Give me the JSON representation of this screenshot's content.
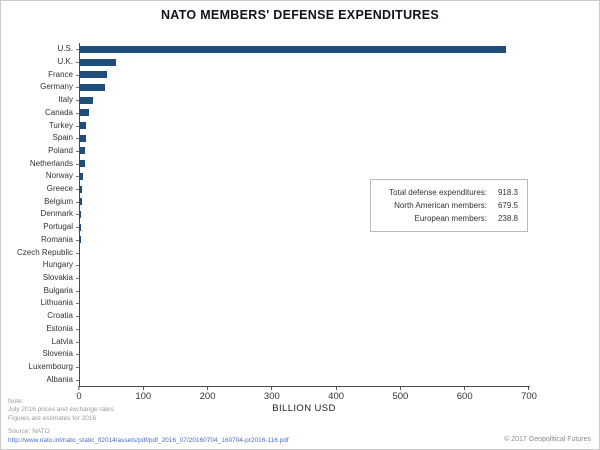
{
  "chart_data": {
    "type": "bar",
    "orientation": "horizontal",
    "title": "NATO MEMBERS' DEFENSE EXPENDITURES",
    "xlabel": "BILLION USD",
    "xlim": [
      0,
      700
    ],
    "xticks": [
      0,
      100,
      200,
      300,
      400,
      500,
      600,
      700
    ],
    "grid": false,
    "legend": false,
    "bar_color": "#1f4e7a",
    "categories": [
      "U.S.",
      "U.K.",
      "France",
      "Germany",
      "Italy",
      "Canada",
      "Turkey",
      "Spain",
      "Poland",
      "Netherlands",
      "Norway",
      "Greece",
      "Belgium",
      "Denmark",
      "Portugal",
      "Romania",
      "Czech Republic",
      "Hungary",
      "Slovakia",
      "Bulgaria",
      "Lithuania",
      "Croatia",
      "Estonia",
      "Latvia",
      "Slovenia",
      "Luxembourg",
      "Albania"
    ],
    "values": [
      663.6,
      56.9,
      43.6,
      40.7,
      21.9,
      15.9,
      11.6,
      11.1,
      9.4,
      9.1,
      6.1,
      4.6,
      4.0,
      3.6,
      3.2,
      2.6,
      2.0,
      1.4,
      1.0,
      0.7,
      0.6,
      0.6,
      0.5,
      0.4,
      0.4,
      0.2,
      0.1
    ]
  },
  "summary_box": {
    "rows": [
      {
        "label": "Total defense expenditures:",
        "value": "918.3"
      },
      {
        "label": "North American members:",
        "value": "679.5"
      },
      {
        "label": "European members:",
        "value": "238.8"
      }
    ]
  },
  "notes": {
    "note_label": "Note:",
    "note_line1": "July 2016 prices and exchange rates",
    "note_line2": "Figures are estimates for 2016",
    "source_label": "Source: NATO",
    "source_url": "http://www.nato.int/nato_static_fl2014/assets/pdf/pdf_2016_07/20160704_160704-pr2016-116.pdf"
  },
  "footer": {
    "copyright": "© 2017 Geopolitical Futures"
  }
}
